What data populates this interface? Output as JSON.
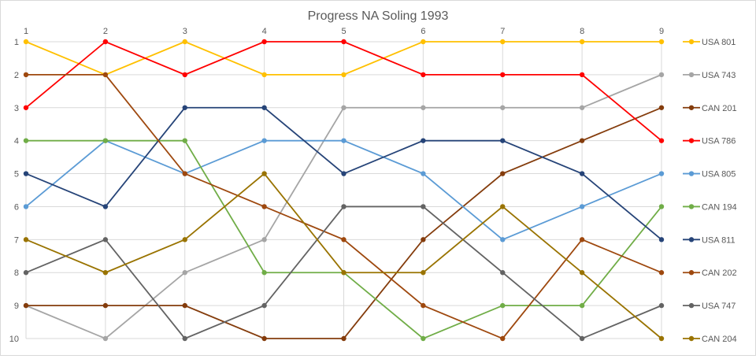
{
  "chart_data": {
    "type": "line",
    "title": "Progress NA Soling 1993",
    "x": [
      1,
      2,
      3,
      4,
      5,
      6,
      7,
      8,
      9
    ],
    "x_tick_labels": [
      "1",
      "2",
      "3",
      "4",
      "5",
      "6",
      "7",
      "8",
      "9"
    ],
    "y_tick_labels": [
      "1",
      "2",
      "3",
      "4",
      "5",
      "6",
      "7",
      "8",
      "9",
      "10"
    ],
    "ylim": [
      1,
      10
    ],
    "y_reversed": true,
    "x_axis_position": "top",
    "grid": true,
    "legend_position": "right",
    "series": [
      {
        "name": "USA 801",
        "color": "#FFC000",
        "values": [
          1,
          2,
          1,
          2,
          2,
          1,
          1,
          1,
          1
        ]
      },
      {
        "name": "USA 743",
        "color": "#A5A5A5",
        "values": [
          9,
          10,
          8,
          7,
          3,
          3,
          3,
          3,
          2
        ]
      },
      {
        "name": "CAN 201",
        "color": "#843C0C",
        "values": [
          9,
          9,
          9,
          10,
          10,
          7,
          5,
          4,
          3
        ]
      },
      {
        "name": "USA 786",
        "color": "#FF0000",
        "values": [
          3,
          1,
          2,
          1,
          1,
          2,
          2,
          2,
          4
        ]
      },
      {
        "name": "USA 805",
        "color": "#5B9BD5",
        "values": [
          6,
          4,
          5,
          4,
          4,
          5,
          7,
          6,
          5
        ]
      },
      {
        "name": "CAN 194",
        "color": "#70AD47",
        "values": [
          4,
          4,
          4,
          8,
          8,
          10,
          9,
          9,
          6
        ]
      },
      {
        "name": "USA 811",
        "color": "#264478",
        "values": [
          5,
          6,
          3,
          3,
          5,
          4,
          4,
          5,
          7
        ]
      },
      {
        "name": "CAN 202",
        "color": "#9E480E",
        "values": [
          2,
          2,
          5,
          6,
          7,
          9,
          10,
          7,
          8
        ]
      },
      {
        "name": "USA 747",
        "color": "#636363",
        "values": [
          8,
          7,
          10,
          9,
          6,
          6,
          8,
          10,
          9
        ]
      },
      {
        "name": "CAN 204",
        "color": "#997300",
        "values": [
          7,
          8,
          7,
          5,
          8,
          8,
          6,
          8,
          10
        ]
      }
    ]
  }
}
